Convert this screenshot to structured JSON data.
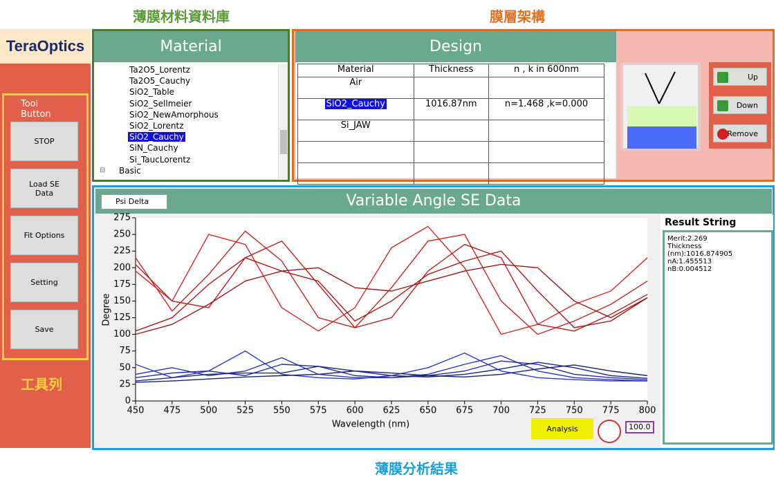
{
  "labels": {
    "database": "薄膜材料資料庫",
    "layers": "膜層架構",
    "results": "薄膜分析結果",
    "toolbar": "工具列"
  },
  "toolbar": {
    "logo": "TeraOptics",
    "title": "Tool Button",
    "buttons": [
      "STOP",
      "Load SE Data",
      "Fit Options",
      "Setting",
      "Save"
    ]
  },
  "material": {
    "title": "Material",
    "items": [
      "Ta2O5_Lorentz",
      "Ta2O5_Cauchy",
      "SiO2_Table",
      "SiO2_Sellmeier",
      "SiO2_NewAmorphous",
      "SiO2_Lorentz",
      "SiO2_Cauchy",
      "SiN_Cauchy",
      "Si_TaucLorentz"
    ],
    "folder": "Basic"
  },
  "design": {
    "title": "Design",
    "columns": [
      "Material",
      "Thickness",
      "n , k  in 600nm"
    ],
    "rows": [
      {
        "material": "Air"
      },
      {
        "material": "SiO2_Cauchy",
        "thickness": "1016.87nm",
        "nk": "n=1.468 ,k=0.000"
      },
      {
        "material": "Si_JAW"
      }
    ],
    "buttons": [
      "Up",
      "Down",
      "Remove"
    ]
  },
  "se_data": {
    "title": "Variable Angle SE Data",
    "mode": "Psi Delta",
    "analysis": "Analysis",
    "zoom": "100.0"
  },
  "result": {
    "title": "Result String",
    "lines": [
      "Merit:2.269",
      "Thickness (nm):1016.874905",
      "nA:1.455513",
      "nB:0.004512"
    ]
  },
  "chart_data": {
    "type": "line",
    "x_label": "Wavelength (nm)",
    "y_label": "Degree",
    "x": [
      450,
      475,
      500,
      525,
      550,
      575,
      600,
      625,
      650,
      675,
      700,
      725,
      750,
      775,
      800
    ],
    "xlim": [
      450,
      800
    ],
    "xticks": [
      450,
      475,
      500,
      525,
      550,
      575,
      600,
      625,
      650,
      675,
      700,
      725,
      750,
      775,
      800
    ],
    "ylim": [
      0,
      275
    ],
    "yticks": [
      0,
      25,
      50,
      75,
      100,
      125,
      150,
      175,
      200,
      225,
      250,
      275
    ],
    "series": [
      {
        "color": "#d42a2a",
        "values": [
          195,
          150,
          250,
          235,
          140,
          105,
          140,
          230,
          262,
          200,
          100,
          115,
          145,
          165,
          215
        ]
      },
      {
        "color": "#c82424",
        "values": [
          215,
          135,
          190,
          255,
          210,
          125,
          110,
          170,
          240,
          250,
          150,
          100,
          120,
          145,
          180
        ]
      },
      {
        "color": "#b82020",
        "values": [
          205,
          150,
          140,
          215,
          240,
          175,
          110,
          125,
          195,
          235,
          215,
          115,
          105,
          130,
          160
        ]
      },
      {
        "color": "#a81c1c",
        "values": [
          105,
          125,
          175,
          215,
          195,
          180,
          120,
          150,
          190,
          210,
          225,
          165,
          110,
          120,
          155
        ]
      },
      {
        "color": "#981818",
        "values": [
          100,
          115,
          145,
          180,
          195,
          200,
          170,
          165,
          180,
          195,
          205,
          200,
          150,
          125,
          155
        ]
      },
      {
        "color": "#2a3ad0",
        "values": [
          55,
          35,
          45,
          75,
          40,
          35,
          33,
          38,
          50,
          72,
          45,
          35,
          32,
          30,
          30
        ]
      },
      {
        "color": "#2434b8",
        "values": [
          40,
          50,
          38,
          45,
          65,
          40,
          35,
          35,
          40,
          55,
          68,
          45,
          35,
          32,
          30
        ]
      },
      {
        "color": "#1e2ea0",
        "values": [
          35,
          42,
          45,
          38,
          55,
          52,
          38,
          35,
          38,
          45,
          60,
          55,
          40,
          35,
          32
        ]
      },
      {
        "color": "#1a2888",
        "values": [
          30,
          35,
          40,
          42,
          42,
          52,
          45,
          38,
          36,
          40,
          48,
          58,
          50,
          38,
          34
        ]
      },
      {
        "color": "#162270",
        "values": [
          28,
          30,
          33,
          36,
          38,
          40,
          45,
          42,
          38,
          36,
          40,
          48,
          54,
          45,
          38
        ]
      }
    ]
  }
}
